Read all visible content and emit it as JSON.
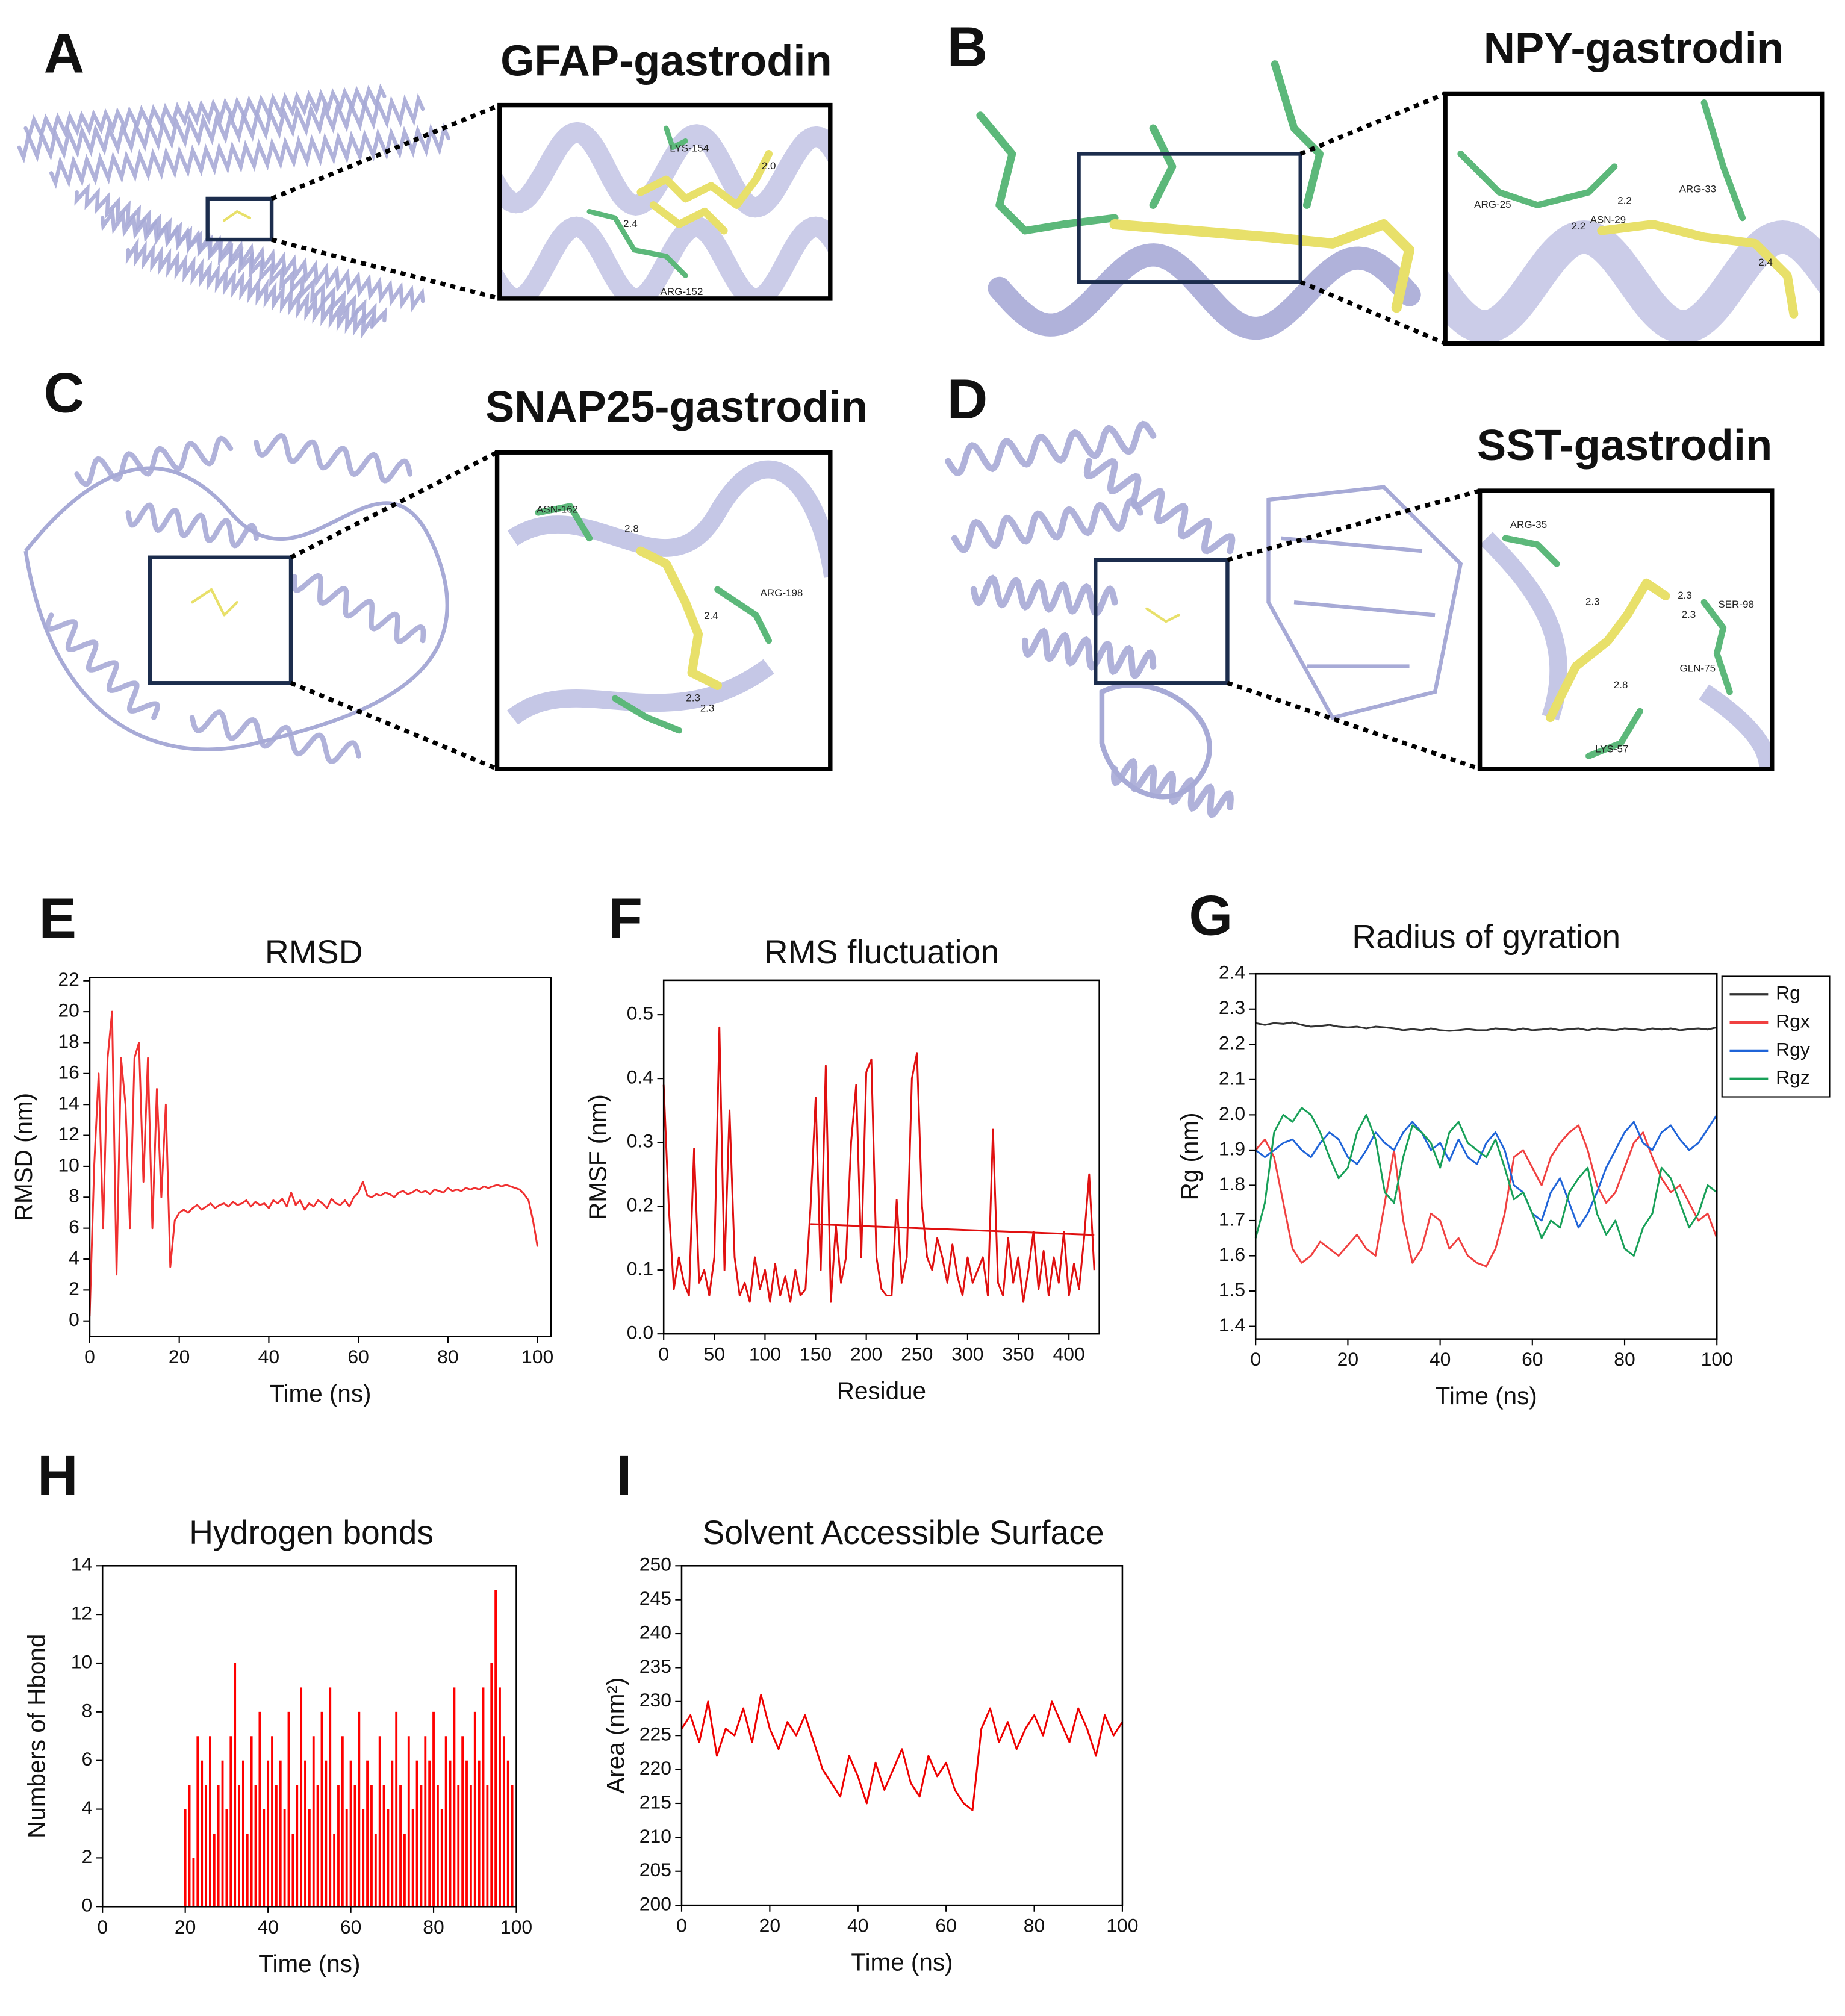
{
  "panels": [
    {
      "letter": "A",
      "title": "GFAP-gastrodin",
      "labels": [
        "LYS-154",
        "2.0",
        "2.4",
        "ARG-152"
      ]
    },
    {
      "letter": "B",
      "title": "NPY-gastrodin",
      "labels": [
        "ARG-25",
        "2.2",
        "ASN-29",
        "2.2",
        "ARG-33",
        "2.4"
      ]
    },
    {
      "letter": "C",
      "title": "SNAP25-gastrodin",
      "labels": [
        "ASN-162",
        "2.8",
        "ARG-198",
        "2.4",
        "2.3",
        "2.3"
      ]
    },
    {
      "letter": "D",
      "title": "SST-gastrodin",
      "labels": [
        "ARG-35",
        "2.3",
        "2.3",
        "SER-98",
        "2.3",
        "GLN-75",
        "2.8",
        "LYS-57"
      ]
    }
  ],
  "chart_data": [
    {
      "panel_label": "E",
      "type": "line",
      "title": "RMSD",
      "x_label": "Time (ns)",
      "y_label": "RMSD (nm)",
      "color": "#f03030",
      "xlim": [
        0,
        103
      ],
      "ylim": [
        -1,
        22.2
      ],
      "xticks": [
        0,
        20,
        40,
        60,
        80,
        100
      ],
      "yticks": [
        0,
        2,
        4,
        6,
        8,
        10,
        12,
        14,
        16,
        18,
        20,
        22
      ],
      "x": [
        0,
        1,
        2,
        3,
        4,
        5,
        6,
        7,
        8,
        9,
        10,
        11,
        12,
        13,
        14,
        15,
        16,
        17,
        18,
        19,
        20,
        21,
        22,
        23,
        24,
        25,
        26,
        27,
        28,
        29,
        30,
        31,
        32,
        33,
        34,
        35,
        36,
        37,
        38,
        39,
        40,
        41,
        42,
        43,
        44,
        45,
        46,
        47,
        48,
        49,
        50,
        51,
        52,
        53,
        54,
        55,
        56,
        57,
        58,
        59,
        60,
        61,
        62,
        63,
        64,
        65,
        66,
        67,
        68,
        69,
        70,
        71,
        72,
        73,
        74,
        75,
        76,
        77,
        78,
        79,
        80,
        81,
        82,
        83,
        84,
        85,
        86,
        87,
        88,
        89,
        90,
        91,
        92,
        93,
        94,
        95,
        96,
        97,
        98,
        99,
        100
      ],
      "values": [
        0.3,
        10,
        16,
        6,
        17,
        20,
        3,
        17,
        14,
        6,
        17,
        18,
        9,
        17,
        6,
        15,
        8,
        14,
        3.5,
        6.5,
        7,
        7.2,
        7,
        7.3,
        7.5,
        7.2,
        7.4,
        7.6,
        7.3,
        7.5,
        7.6,
        7.4,
        7.7,
        7.5,
        7.6,
        7.8,
        7.4,
        7.7,
        7.5,
        7.6,
        7.3,
        7.8,
        7.6,
        7.9,
        7.4,
        8.3,
        7.5,
        7.8,
        7.2,
        7.6,
        7.4,
        7.8,
        7.6,
        7.3,
        7.9,
        7.6,
        7.5,
        7.8,
        7.4,
        8.0,
        8.3,
        9.0,
        8.1,
        8.0,
        8.2,
        8.1,
        8.3,
        8.2,
        8.0,
        8.3,
        8.4,
        8.2,
        8.3,
        8.5,
        8.3,
        8.4,
        8.2,
        8.5,
        8.4,
        8.3,
        8.6,
        8.4,
        8.5,
        8.4,
        8.6,
        8.5,
        8.6,
        8.5,
        8.7,
        8.6,
        8.7,
        8.8,
        8.7,
        8.8,
        8.7,
        8.6,
        8.5,
        8.2,
        7.8,
        6.5,
        4.8
      ]
    },
    {
      "panel_label": "F",
      "type": "line",
      "title": "RMS fluctuation",
      "x_label": "Residue",
      "y_label": "RMSF (nm)",
      "color": "#e01010",
      "xlim": [
        0,
        430
      ],
      "ylim": [
        0,
        0.554
      ],
      "xticks": [
        0,
        50,
        100,
        150,
        200,
        250,
        300,
        350,
        400
      ],
      "yticks": [
        {
          "value": 0,
          "label": "0.0"
        },
        0.1,
        0.2,
        0.3,
        0.4,
        0.5
      ],
      "x": [
        0,
        5,
        10,
        15,
        20,
        25,
        30,
        35,
        40,
        45,
        50,
        55,
        60,
        65,
        70,
        75,
        80,
        85,
        90,
        95,
        100,
        105,
        110,
        115,
        120,
        125,
        130,
        135,
        140,
        145,
        150,
        155,
        160,
        165,
        170,
        175,
        180,
        185,
        190,
        195,
        200,
        205,
        210,
        215,
        220,
        225,
        230,
        235,
        240,
        245,
        250,
        255,
        260,
        265,
        270,
        275,
        280,
        285,
        290,
        295,
        300,
        305,
        310,
        315,
        320,
        325,
        330,
        335,
        340,
        345,
        350,
        355,
        360,
        365,
        370,
        375,
        380,
        385,
        390,
        395,
        400,
        405,
        410,
        415,
        420,
        425
      ],
      "values": [
        0.39,
        0.2,
        0.07,
        0.12,
        0.08,
        0.06,
        0.29,
        0.08,
        0.1,
        0.06,
        0.12,
        0.48,
        0.1,
        0.35,
        0.12,
        0.06,
        0.08,
        0.05,
        0.12,
        0.07,
        0.1,
        0.05,
        0.11,
        0.06,
        0.09,
        0.05,
        0.1,
        0.06,
        0.07,
        0.2,
        0.37,
        0.1,
        0.42,
        0.05,
        0.17,
        0.08,
        0.12,
        0.3,
        0.39,
        0.12,
        0.41,
        0.43,
        0.12,
        0.07,
        0.06,
        0.06,
        0.21,
        0.08,
        0.12,
        0.4,
        0.44,
        0.2,
        0.12,
        0.1,
        0.15,
        0.12,
        0.08,
        0.14,
        0.09,
        0.06,
        0.12,
        0.08,
        0.1,
        0.12,
        0.06,
        0.32,
        0.08,
        0.06,
        0.15,
        0.08,
        0.12,
        0.05,
        0.1,
        0.16,
        0.07,
        0.13,
        0.06,
        0.12,
        0.08,
        0.16,
        0.06,
        0.11,
        0.07,
        0.15,
        0.25,
        0.1
      ],
      "trend": {
        "x": [
          145,
          425
        ],
        "values": [
          0.172,
          0.155
        ],
        "color": "#e01010"
      }
    },
    {
      "panel_label": "G",
      "type": "line",
      "title": "Radius of gyration",
      "x_label": "Time (ns)",
      "y_label": "Rg (nm)",
      "xlim": [
        0,
        100
      ],
      "ylim": [
        1.364,
        2.4
      ],
      "xticks": [
        0,
        20,
        40,
        60,
        80,
        100
      ],
      "yticks": [
        1.4,
        1.5,
        1.6,
        1.7,
        1.8,
        1.9,
        {
          "value": 2,
          "label": "2.0"
        },
        2.1,
        2.2,
        2.3,
        2.4
      ],
      "legend": "upper right",
      "x": [
        0,
        2,
        4,
        6,
        8,
        10,
        12,
        14,
        16,
        18,
        20,
        22,
        24,
        26,
        28,
        30,
        32,
        34,
        36,
        38,
        40,
        42,
        44,
        46,
        48,
        50,
        52,
        54,
        56,
        58,
        60,
        62,
        64,
        66,
        68,
        70,
        72,
        74,
        76,
        78,
        80,
        82,
        84,
        86,
        88,
        90,
        92,
        94,
        96,
        98,
        100
      ],
      "series": [
        {
          "name": "Rg",
          "color": "#333333",
          "values": [
            2.26,
            2.255,
            2.26,
            2.258,
            2.262,
            2.255,
            2.25,
            2.252,
            2.255,
            2.25,
            2.248,
            2.25,
            2.245,
            2.25,
            2.248,
            2.245,
            2.24,
            2.243,
            2.24,
            2.245,
            2.24,
            2.238,
            2.24,
            2.243,
            2.24,
            2.24,
            2.245,
            2.243,
            2.24,
            2.245,
            2.24,
            2.242,
            2.245,
            2.24,
            2.243,
            2.245,
            2.24,
            2.245,
            2.242,
            2.24,
            2.245,
            2.243,
            2.24,
            2.245,
            2.242,
            2.245,
            2.24,
            2.243,
            2.245,
            2.242,
            2.248
          ]
        },
        {
          "name": "Rgx",
          "color": "#f04040",
          "values": [
            1.9,
            1.93,
            1.88,
            1.75,
            1.62,
            1.58,
            1.6,
            1.64,
            1.62,
            1.6,
            1.63,
            1.66,
            1.62,
            1.6,
            1.75,
            1.9,
            1.7,
            1.58,
            1.62,
            1.72,
            1.7,
            1.62,
            1.65,
            1.6,
            1.58,
            1.57,
            1.62,
            1.72,
            1.88,
            1.9,
            1.85,
            1.8,
            1.88,
            1.92,
            1.95,
            1.97,
            1.9,
            1.8,
            1.75,
            1.78,
            1.85,
            1.92,
            1.95,
            1.88,
            1.82,
            1.78,
            1.8,
            1.75,
            1.7,
            1.72,
            1.65
          ]
        },
        {
          "name": "Rgy",
          "color": "#1f64d8",
          "values": [
            1.9,
            1.88,
            1.9,
            1.92,
            1.93,
            1.9,
            1.88,
            1.92,
            1.95,
            1.93,
            1.88,
            1.86,
            1.9,
            1.95,
            1.92,
            1.9,
            1.95,
            1.98,
            1.95,
            1.9,
            1.92,
            1.87,
            1.93,
            1.88,
            1.86,
            1.92,
            1.95,
            1.9,
            1.8,
            1.78,
            1.72,
            1.7,
            1.78,
            1.82,
            1.75,
            1.68,
            1.72,
            1.78,
            1.85,
            1.9,
            1.95,
            1.98,
            1.92,
            1.9,
            1.95,
            1.97,
            1.93,
            1.9,
            1.92,
            1.96,
            2.0
          ]
        },
        {
          "name": "Rgz",
          "color": "#18a058",
          "values": [
            1.65,
            1.75,
            1.95,
            2.0,
            1.98,
            2.02,
            2.0,
            1.95,
            1.88,
            1.82,
            1.85,
            1.95,
            2.0,
            1.93,
            1.78,
            1.75,
            1.88,
            1.97,
            1.95,
            1.92,
            1.85,
            1.95,
            1.98,
            1.92,
            1.9,
            1.88,
            1.93,
            1.85,
            1.76,
            1.78,
            1.72,
            1.65,
            1.7,
            1.68,
            1.78,
            1.82,
            1.85,
            1.72,
            1.66,
            1.7,
            1.62,
            1.6,
            1.68,
            1.72,
            1.85,
            1.82,
            1.75,
            1.68,
            1.72,
            1.8,
            1.78
          ]
        }
      ]
    },
    {
      "panel_label": "H",
      "type": "bar",
      "title": "Hydrogen bonds",
      "x_label": "Time (ns)",
      "y_label": "Numbers of Hbond",
      "color": "#ff0000",
      "xlim": [
        0,
        100
      ],
      "ylim": [
        0,
        14
      ],
      "xticks": [
        0,
        20,
        40,
        60,
        80,
        100
      ],
      "yticks": [
        0,
        2,
        4,
        6,
        8,
        10,
        12,
        14
      ],
      "x": [
        20,
        21,
        22,
        23,
        24,
        25,
        26,
        27,
        28,
        29,
        30,
        31,
        32,
        33,
        34,
        35,
        36,
        37,
        38,
        39,
        40,
        41,
        42,
        43,
        44,
        45,
        46,
        47,
        48,
        49,
        50,
        51,
        52,
        53,
        54,
        55,
        56,
        57,
        58,
        59,
        60,
        61,
        62,
        63,
        64,
        65,
        66,
        67,
        68,
        69,
        70,
        71,
        72,
        73,
        74,
        75,
        76,
        77,
        78,
        79,
        80,
        81,
        82,
        83,
        84,
        85,
        86,
        87,
        88,
        89,
        90,
        91,
        92,
        93,
        94,
        95,
        96,
        97,
        98,
        99
      ],
      "values": [
        4,
        5,
        2,
        7,
        6,
        5,
        7,
        3,
        5,
        6,
        4,
        7,
        10,
        5,
        6,
        3,
        7,
        5,
        8,
        4,
        6,
        7,
        5,
        6,
        4,
        8,
        3,
        5,
        9,
        6,
        4,
        7,
        5,
        8,
        6,
        9,
        3,
        5,
        7,
        4,
        6,
        5,
        8,
        4,
        6,
        5,
        3,
        7,
        5,
        4,
        6,
        8,
        5,
        3,
        7,
        4,
        6,
        5,
        7,
        6,
        8,
        5,
        4,
        7,
        6,
        9,
        5,
        7,
        6,
        5,
        8,
        6,
        9,
        5,
        10,
        13,
        9,
        7,
        6,
        5
      ]
    },
    {
      "panel_label": "I",
      "type": "line",
      "title": "Solvent Accessible Surface",
      "x_label": "Time (ns)",
      "y_label": "Area (nm²)",
      "color": "#ee0000",
      "xlim": [
        0,
        100
      ],
      "ylim": [
        200,
        250
      ],
      "xticks": [
        0,
        20,
        40,
        60,
        80,
        100
      ],
      "yticks": [
        200,
        205,
        210,
        215,
        220,
        225,
        230,
        235,
        240,
        245,
        250
      ],
      "x": [
        0,
        2,
        4,
        6,
        8,
        10,
        12,
        14,
        16,
        18,
        20,
        22,
        24,
        26,
        28,
        30,
        32,
        34,
        36,
        38,
        40,
        42,
        44,
        46,
        48,
        50,
        52,
        54,
        56,
        58,
        60,
        62,
        64,
        66,
        68,
        70,
        72,
        74,
        76,
        78,
        80,
        82,
        84,
        86,
        88,
        90,
        92,
        94,
        96,
        98,
        100
      ],
      "values": [
        226,
        228,
        224,
        230,
        222,
        226,
        225,
        229,
        224,
        231,
        226,
        223,
        227,
        225,
        228,
        224,
        220,
        218,
        216,
        222,
        219,
        215,
        221,
        217,
        220,
        223,
        218,
        216,
        222,
        219,
        221,
        217,
        215,
        214,
        226,
        229,
        224,
        227,
        223,
        226,
        228,
        225,
        230,
        227,
        224,
        229,
        226,
        222,
        228,
        225,
        227
      ]
    }
  ]
}
